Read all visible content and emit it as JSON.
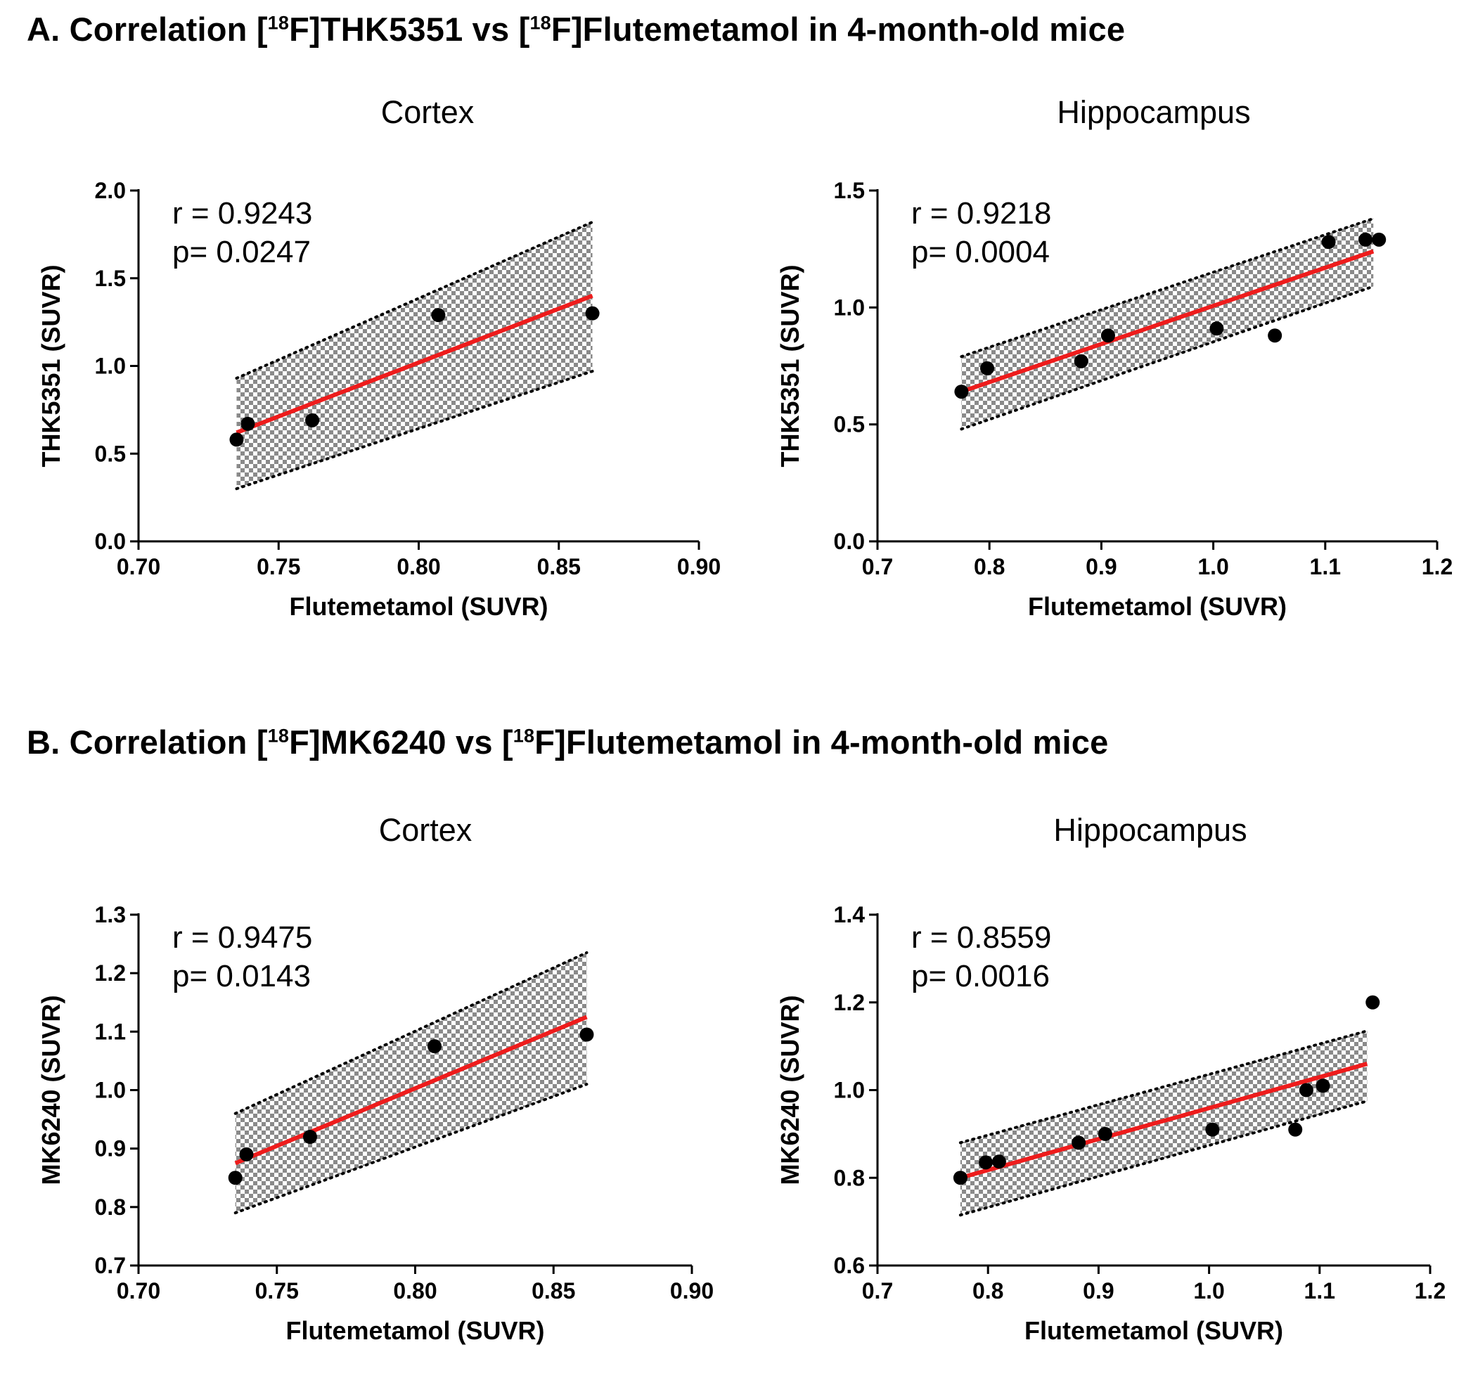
{
  "figure": {
    "section_a": {
      "prefix": "A. Correlation [",
      "sup1": "18",
      "mid": "F]THK5351 vs [",
      "sup2": "18",
      "suffix": "F]Flutemetamol in 4-month-old mice"
    },
    "section_b": {
      "prefix": "B. Correlation [",
      "sup1": "18",
      "mid": "F]MK6240 vs [",
      "sup2": "18",
      "suffix": "F]Flutemetamol in 4-month-old mice"
    }
  },
  "chart_data": [
    {
      "id": "a-cortex",
      "type": "scatter",
      "title": "Cortex",
      "xlabel": "Flutemetamol (SUVR)",
      "ylabel": "THK5351 (SUVR)",
      "xlim": [
        0.7,
        0.9
      ],
      "ylim": [
        0.0,
        2.0
      ],
      "xticks": [
        "0.70",
        "0.75",
        "0.80",
        "0.85",
        "0.90"
      ],
      "yticks": [
        "0.0",
        "0.5",
        "1.0",
        "1.5",
        "2.0"
      ],
      "r_text": "r = 0.9243",
      "p_text": "p= 0.0247",
      "points": [
        {
          "x": 0.735,
          "y": 0.58
        },
        {
          "x": 0.739,
          "y": 0.67
        },
        {
          "x": 0.762,
          "y": 0.69
        },
        {
          "x": 0.807,
          "y": 1.29
        },
        {
          "x": 0.862,
          "y": 1.3
        }
      ],
      "fit": {
        "x": [
          0.735,
          0.862
        ],
        "y": [
          0.62,
          1.4
        ]
      },
      "band_upper": {
        "x": [
          0.735,
          0.862
        ],
        "y": [
          0.93,
          1.82
        ]
      },
      "band_lower": {
        "x": [
          0.735,
          0.862
        ],
        "y": [
          0.3,
          0.97
        ]
      },
      "colors": {
        "fit": "#ee1c1c",
        "points": "#000000"
      }
    },
    {
      "id": "a-hippo",
      "type": "scatter",
      "title": "Hippocampus",
      "xlabel": "Flutemetamol (SUVR)",
      "ylabel": "THK5351 (SUVR)",
      "xlim": [
        0.7,
        1.2
      ],
      "ylim": [
        0.0,
        1.5
      ],
      "xticks": [
        "0.7",
        "0.8",
        "0.9",
        "1.0",
        "1.1",
        "1.2"
      ],
      "yticks": [
        "0.0",
        "0.5",
        "1.0",
        "1.5"
      ],
      "r_text": "r = 0.9218",
      "p_text": "p= 0.0004",
      "points": [
        {
          "x": 0.775,
          "y": 0.64
        },
        {
          "x": 0.798,
          "y": 0.74
        },
        {
          "x": 0.882,
          "y": 0.77
        },
        {
          "x": 0.906,
          "y": 0.88
        },
        {
          "x": 1.003,
          "y": 0.91
        },
        {
          "x": 1.055,
          "y": 0.88
        },
        {
          "x": 1.103,
          "y": 1.28
        },
        {
          "x": 1.136,
          "y": 1.29
        },
        {
          "x": 1.148,
          "y": 1.29
        }
      ],
      "fit": {
        "x": [
          0.775,
          1.143
        ],
        "y": [
          0.64,
          1.24
        ]
      },
      "band_upper": {
        "x": [
          0.775,
          1.143
        ],
        "y": [
          0.79,
          1.38
        ]
      },
      "band_lower": {
        "x": [
          0.775,
          1.143
        ],
        "y": [
          0.48,
          1.09
        ]
      },
      "colors": {
        "fit": "#ee1c1c",
        "points": "#000000"
      }
    },
    {
      "id": "b-cortex",
      "type": "scatter",
      "title": "Cortex",
      "xlabel": "Flutemetamol (SUVR)",
      "ylabel": "MK6240 (SUVR)",
      "xlim": [
        0.7,
        0.9
      ],
      "ylim": [
        0.7,
        1.3
      ],
      "xticks": [
        "0.70",
        "0.75",
        "0.80",
        "0.85",
        "0.90"
      ],
      "yticks": [
        "0.7",
        "0.8",
        "0.9",
        "1.0",
        "1.1",
        "1.2",
        "1.3"
      ],
      "r_text": "r = 0.9475",
      "p_text": "p= 0.0143",
      "points": [
        {
          "x": 0.735,
          "y": 0.85
        },
        {
          "x": 0.739,
          "y": 0.89
        },
        {
          "x": 0.762,
          "y": 0.92
        },
        {
          "x": 0.807,
          "y": 1.075
        },
        {
          "x": 0.862,
          "y": 1.095
        }
      ],
      "fit": {
        "x": [
          0.735,
          0.862
        ],
        "y": [
          0.875,
          1.125
        ]
      },
      "band_upper": {
        "x": [
          0.735,
          0.862
        ],
        "y": [
          0.96,
          1.235
        ]
      },
      "band_lower": {
        "x": [
          0.735,
          0.862
        ],
        "y": [
          0.79,
          1.01
        ]
      },
      "colors": {
        "fit": "#ee1c1c",
        "points": "#000000"
      }
    },
    {
      "id": "b-hippo",
      "type": "scatter",
      "title": "Hippocampus",
      "xlabel": "Flutemetamol (SUVR)",
      "ylabel": "MK6240 (SUVR)",
      "xlim": [
        0.7,
        1.2
      ],
      "ylim": [
        0.6,
        1.4
      ],
      "xticks": [
        "0.7",
        "0.8",
        "0.9",
        "1.0",
        "1.1",
        "1.2"
      ],
      "yticks": [
        "0.6",
        "0.8",
        "1.0",
        "1.2",
        "1.4"
      ],
      "r_text": "r = 0.8559",
      "p_text": "p= 0.0016",
      "points": [
        {
          "x": 0.775,
          "y": 0.8
        },
        {
          "x": 0.798,
          "y": 0.835
        },
        {
          "x": 0.81,
          "y": 0.837
        },
        {
          "x": 0.882,
          "y": 0.88
        },
        {
          "x": 0.906,
          "y": 0.9
        },
        {
          "x": 1.003,
          "y": 0.91
        },
        {
          "x": 1.078,
          "y": 0.91
        },
        {
          "x": 1.088,
          "y": 1.0
        },
        {
          "x": 1.103,
          "y": 1.01
        },
        {
          "x": 1.148,
          "y": 1.2
        }
      ],
      "fit": {
        "x": [
          0.775,
          1.143
        ],
        "y": [
          0.8,
          1.06
        ]
      },
      "band_upper": {
        "x": [
          0.775,
          1.143
        ],
        "y": [
          0.88,
          1.135
        ]
      },
      "band_lower": {
        "x": [
          0.775,
          1.143
        ],
        "y": [
          0.715,
          0.975
        ]
      },
      "colors": {
        "fit": "#ee1c1c",
        "points": "#000000"
      }
    }
  ]
}
